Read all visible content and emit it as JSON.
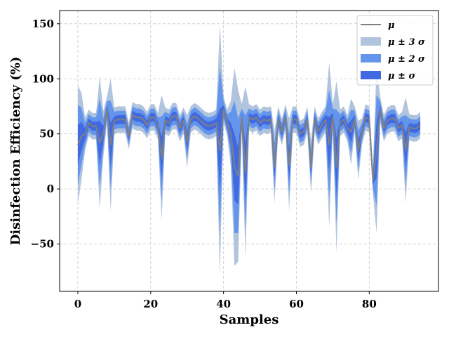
{
  "chart_data": {
    "type": "area",
    "xlabel": "Samples",
    "ylabel": "Disinfection Efficiency (%)",
    "xlim": [
      -5,
      99
    ],
    "ylim": [
      -93,
      162
    ],
    "xticks": [
      0,
      20,
      40,
      60,
      80
    ],
    "yticks": [
      -50,
      0,
      50,
      100,
      150
    ],
    "grid": true,
    "legend_position": "top-right",
    "colors": {
      "mean": "#808080",
      "band3": "#b0c4de",
      "band2": "#6495ed",
      "band1": "#4169e1"
    },
    "legend": [
      {
        "key": "mean",
        "label": "μ"
      },
      {
        "key": "band3",
        "label": "μ ± 3 σ"
      },
      {
        "key": "band2",
        "label": "μ ± 2 σ"
      },
      {
        "key": "band1",
        "label": "μ ±  σ"
      }
    ],
    "x": [
      0,
      1,
      2,
      3,
      4,
      5,
      6,
      7,
      8,
      9,
      10,
      11,
      12,
      13,
      14,
      15,
      16,
      17,
      18,
      19,
      20,
      21,
      22,
      23,
      24,
      25,
      26,
      27,
      28,
      29,
      30,
      31,
      32,
      33,
      34,
      35,
      36,
      37,
      38,
      39,
      40,
      41,
      42,
      43,
      44,
      45,
      46,
      47,
      48,
      49,
      50,
      51,
      52,
      53,
      54,
      55,
      56,
      57,
      58,
      59,
      60,
      61,
      62,
      63,
      64,
      65,
      66,
      67,
      68,
      69,
      70,
      71,
      72,
      73,
      74,
      75,
      76,
      77,
      78,
      79,
      80,
      81,
      82,
      83,
      84,
      85,
      86,
      87,
      88,
      89,
      90,
      91,
      92,
      93,
      94
    ],
    "mean": [
      40,
      48,
      50,
      60,
      57,
      57,
      42,
      50,
      72,
      40,
      62,
      63,
      63,
      63,
      48,
      67,
      65,
      65,
      63,
      58,
      65,
      65,
      57,
      28,
      62,
      60,
      66,
      66,
      55,
      62,
      43,
      63,
      66,
      64,
      61,
      58,
      57,
      58,
      60,
      35,
      72,
      60,
      50,
      20,
      12,
      65,
      15,
      65,
      63,
      65,
      60,
      63,
      62,
      63,
      20,
      63,
      52,
      65,
      22,
      63,
      63,
      50,
      52,
      63,
      20,
      63,
      52,
      58,
      63,
      40,
      65,
      20,
      60,
      63,
      55,
      52,
      63,
      35,
      52,
      65,
      63,
      8,
      35,
      72,
      55,
      62,
      64,
      64,
      55,
      58,
      35,
      56,
      55,
      55,
      58
    ],
    "sigma": [
      18,
      13,
      5,
      4,
      4,
      4,
      20,
      7,
      4,
      20,
      4,
      4,
      4,
      4,
      4,
      4,
      4,
      4,
      4,
      4,
      4,
      4,
      4,
      19,
      4,
      4,
      4,
      4,
      4,
      4,
      8,
      4,
      4,
      4,
      4,
      4,
      4,
      4,
      4,
      38,
      4,
      4,
      10,
      30,
      26,
      4,
      26,
      4,
      4,
      4,
      4,
      4,
      4,
      4,
      11,
      4,
      4,
      4,
      14,
      4,
      4,
      4,
      4,
      4,
      8,
      4,
      4,
      4,
      4,
      25,
      4,
      26,
      4,
      4,
      4,
      10,
      4,
      9,
      4,
      4,
      4,
      4,
      25,
      4,
      4,
      4,
      4,
      4,
      4,
      4,
      16,
      4,
      4,
      4,
      4
    ]
  }
}
